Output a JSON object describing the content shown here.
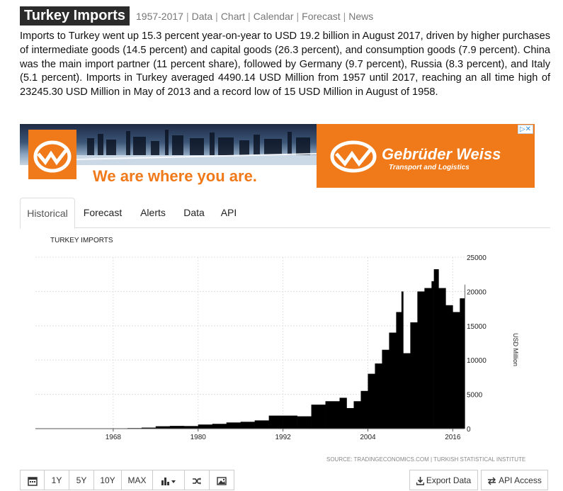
{
  "header": {
    "title": "Turkey Imports",
    "links": [
      "1957-2017",
      "Data",
      "Chart",
      "Calendar",
      "Forecast",
      "News"
    ]
  },
  "summary": "Imports to Turkey went up 15.3 percent year-on-year to USD 19.2 billion in August 2017, driven by higher purchases of intermediate goods (14.5 percent) and capital goods (26.3 percent), and consumption goods (7.9 percent). China was the main import partner (11 percent share), followed by Germany (9.7 percent), Russia (8.3 percent), and Italy (5.1 percent). Imports in Turkey averaged 4490.14 USD Million from 1957 until 2017, reaching an all time high of 23245.30 USD Million in May of 2013 and a record low of 15 USD Million in August of 1958.",
  "ad": {
    "tagline": "We are where you are.",
    "brand": "Gebrüder Weiss",
    "subtitle": "Transport and Logistics",
    "colors": {
      "brand": "#f07a1a"
    }
  },
  "tabs": [
    "Historical",
    "Forecast",
    "Alerts",
    "Data",
    "API"
  ],
  "active_tab": "Historical",
  "chart_data": {
    "type": "bar",
    "title": "TURKEY IMPORTS",
    "ylabel": "USD Million",
    "xlim": [
      1957,
      2017.67
    ],
    "ylim": [
      0,
      25000
    ],
    "yticks": [
      0,
      5000,
      10000,
      15000,
      20000,
      25000
    ],
    "xticks": [
      1968,
      1980,
      1992,
      2004,
      2016
    ],
    "grid": true,
    "source": "SOURCE: TRADINGECONOMICS.COM | TURKISH STATISTICAL INSTITUTE",
    "x": [
      1957,
      1960,
      1965,
      1970,
      1972,
      1974,
      1976,
      1978,
      1980,
      1982,
      1984,
      1986,
      1988,
      1990,
      1992,
      1994,
      1996,
      1998,
      2000,
      2001,
      2002,
      2003,
      2004,
      2005,
      2006,
      2007,
      2008,
      2008.75,
      2009,
      2010,
      2011,
      2012,
      2013,
      2013.33,
      2014,
      2015,
      2016,
      2017,
      2017.67
    ],
    "values": [
      30,
      30,
      40,
      80,
      150,
      350,
      400,
      380,
      600,
      700,
      900,
      1000,
      1200,
      1900,
      1900,
      1800,
      3500,
      4000,
      4500,
      3000,
      4000,
      5500,
      8000,
      9500,
      11500,
      14000,
      17000,
      20000,
      11000,
      15500,
      20000,
      20500,
      21500,
      23245.3,
      20500,
      18000,
      17000,
      19000,
      21000
    ],
    "colors": {
      "bars": "#000000",
      "grid": "#e0e0e0"
    }
  },
  "toolbar": {
    "ranges": [
      "1Y",
      "5Y",
      "10Y",
      "MAX"
    ],
    "icons": [
      "calendar-icon",
      "bar-chart-icon",
      "shuffle-icon",
      "image-icon"
    ],
    "export_label": "Export Data",
    "api_label": "API Access"
  }
}
